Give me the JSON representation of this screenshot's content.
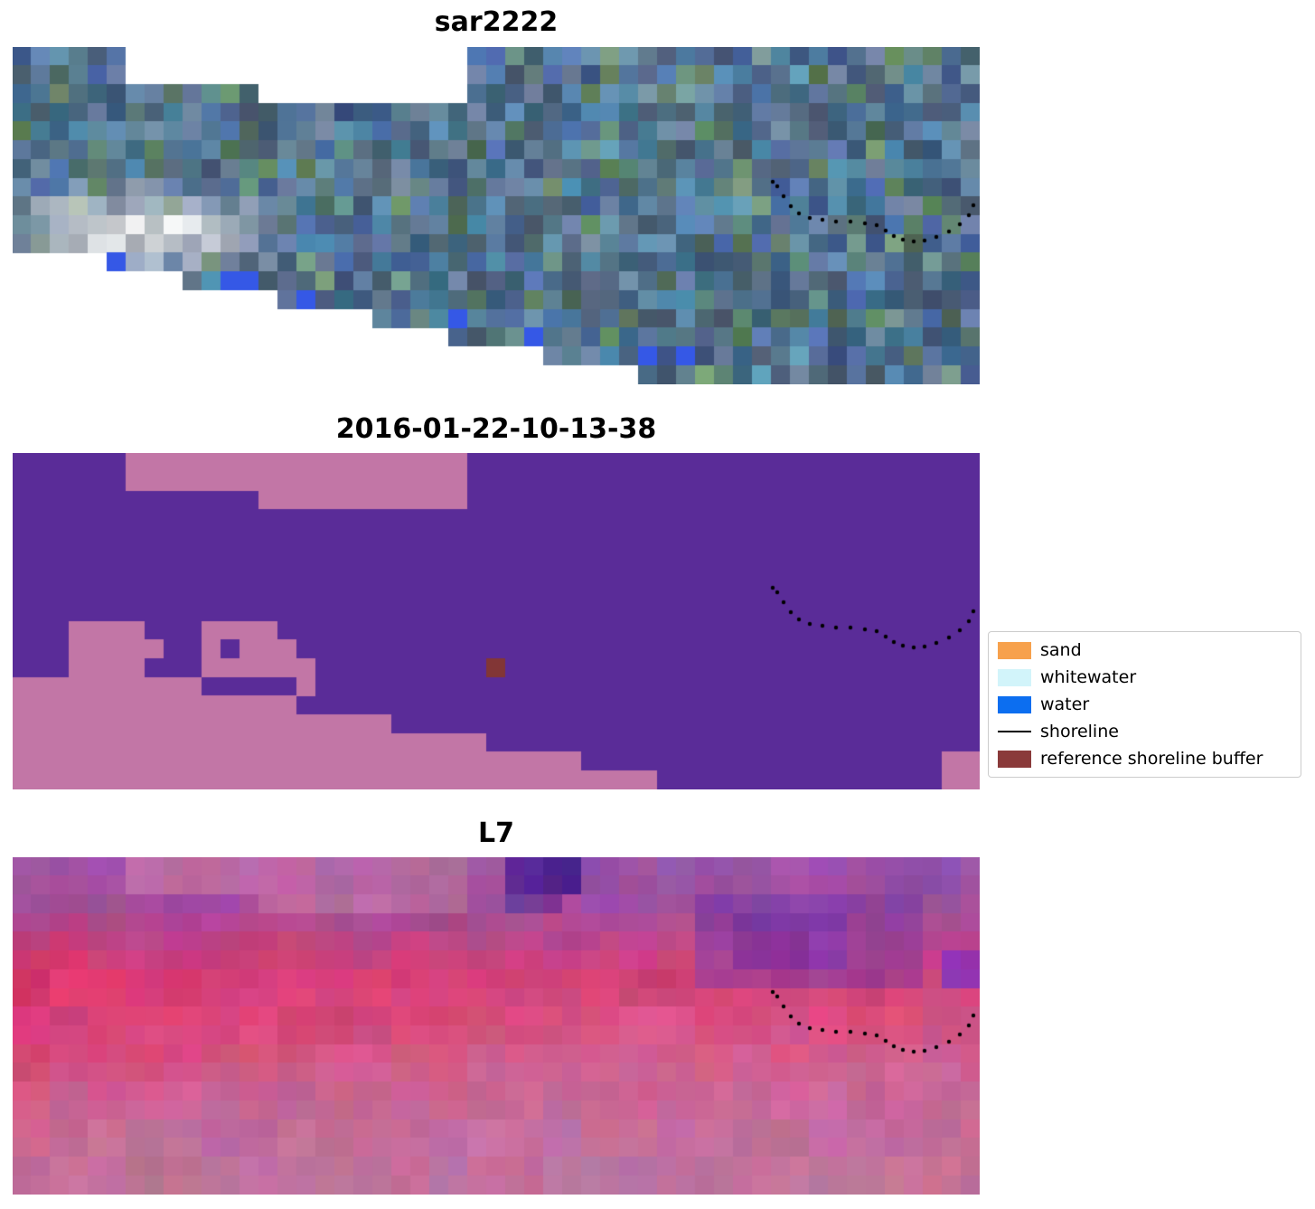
{
  "figure": {
    "background": "#ffffff"
  },
  "grid": {
    "cols": 51,
    "rows": 18
  },
  "panels": [
    {
      "title": "sar2222",
      "type": "sar_noise",
      "palette": {
        "hue_min": 196,
        "hue_span": 28,
        "green_tint_chance": 0.16,
        "accent_blue": "#3558e6",
        "nodata": "#ffffff"
      },
      "bright_spot": {
        "col": 6,
        "row": 9.3,
        "rx": 9.5,
        "ry": 2.8,
        "strength": 0.5
      },
      "top_start_rows": [
        [
          0,
          5,
          0
        ],
        [
          6,
          12,
          2
        ],
        [
          13,
          23,
          3
        ],
        [
          24,
          50,
          0
        ]
      ],
      "bottom_last_rows": [
        [
          0,
          4,
          10
        ],
        [
          5,
          8,
          11
        ],
        [
          9,
          13,
          12
        ],
        [
          14,
          18,
          13
        ],
        [
          19,
          22,
          14
        ],
        [
          23,
          27,
          15
        ],
        [
          28,
          32,
          16
        ],
        [
          33,
          50,
          17
        ]
      ],
      "accent_cells": [
        [
          5,
          11
        ],
        [
          11,
          12
        ],
        [
          12,
          12
        ],
        [
          15,
          13
        ],
        [
          23,
          14
        ],
        [
          27,
          15
        ],
        [
          33,
          16
        ],
        [
          35,
          16
        ]
      ]
    },
    {
      "title": "2016-01-22-10-13-38",
      "type": "classification",
      "colors": {
        "water_class": "#5a2c98",
        "land_class": "#c276a6",
        "buffer": "#823636"
      },
      "top_start_rows": [
        [
          0,
          5,
          0
        ],
        [
          6,
          12,
          2
        ],
        [
          13,
          23,
          3
        ],
        [
          24,
          50,
          0
        ]
      ],
      "bottom_first_pink_rows": [
        [
          0,
          4,
          12
        ],
        [
          5,
          9,
          12
        ],
        [
          10,
          14,
          13
        ],
        [
          15,
          19,
          14
        ],
        [
          20,
          24,
          15
        ],
        [
          25,
          29,
          16
        ],
        [
          30,
          33,
          17
        ],
        [
          34,
          50,
          18
        ]
      ],
      "pink_patches": [
        {
          "cols": [
            3,
            6
          ],
          "rows": [
            9,
            11
          ]
        },
        {
          "cols": [
            7,
            7
          ],
          "rows": [
            10,
            10
          ]
        },
        {
          "cols": [
            10,
            13
          ],
          "rows": [
            9,
            11
          ]
        },
        {
          "cols": [
            14,
            14
          ],
          "rows": [
            10,
            11
          ]
        },
        {
          "cols": [
            15,
            15
          ],
          "rows": [
            11,
            12
          ]
        },
        {
          "cols": [
            49,
            50
          ],
          "rows": [
            16,
            17
          ]
        }
      ],
      "purple_patches": [
        {
          "cols": [
            11,
            11
          ],
          "rows": [
            10,
            10
          ]
        }
      ],
      "buffer_cells": [
        [
          25,
          11
        ]
      ]
    },
    {
      "title": "L7",
      "type": "l7_noise",
      "gradient_stops": [
        [
          0,
          "#9a55ad"
        ],
        [
          2,
          "#a04f9f"
        ],
        [
          4,
          "#bc4689"
        ],
        [
          6,
          "#d64078"
        ],
        [
          8,
          "#d94e81"
        ],
        [
          11,
          "#cd6292"
        ],
        [
          14,
          "#c46e9b"
        ],
        [
          17,
          "#c1739e"
        ]
      ],
      "red_boost": {
        "color": "#dc2e62",
        "max_col": 26,
        "peak_row": 8,
        "row_width": 4.2,
        "strength": 0.55
      },
      "top_start_rows": [
        [
          0,
          5,
          0
        ],
        [
          6,
          12,
          2
        ],
        [
          13,
          23,
          3
        ],
        [
          24,
          50,
          0
        ]
      ],
      "top_left_overlay": {
        "color": "#bd6da2",
        "alpha": 0.85
      },
      "patches": [
        {
          "cols": [
            26,
            29
          ],
          "rows": [
            0,
            1
          ],
          "color": "#4c1d8e",
          "alpha": 0.85
        },
        {
          "cols": [
            26,
            28
          ],
          "rows": [
            2,
            2
          ],
          "color": "#4c1d8e",
          "alpha": 0.45
        },
        {
          "cols": [
            36,
            47
          ],
          "rows": [
            2,
            6
          ],
          "color": "#7c39a8",
          "alpha": 0.5
        },
        {
          "cols": [
            38,
            43
          ],
          "rows": [
            3,
            5
          ],
          "color": "#6f2da6",
          "alpha": 0.45
        },
        {
          "cols": [
            49,
            50
          ],
          "rows": [
            5,
            6
          ],
          "color": "#6b2ad0",
          "alpha": 0.6
        },
        {
          "cols": [
            44,
            48
          ],
          "rows": [
            0,
            1
          ],
          "color": "#8a3f9f",
          "alpha": 0.4
        }
      ],
      "jitter": 12
    }
  ],
  "shoreline_dots": [
    [
      841,
      149
    ],
    [
      846,
      154
    ],
    [
      853,
      165
    ],
    [
      861,
      176
    ],
    [
      870,
      184
    ],
    [
      882,
      189
    ],
    [
      896,
      191
    ],
    [
      911,
      193
    ],
    [
      927,
      193
    ],
    [
      943,
      195
    ],
    [
      956,
      197
    ],
    [
      966,
      203
    ],
    [
      975,
      209
    ],
    [
      985,
      213
    ],
    [
      997,
      215
    ],
    [
      1009,
      214
    ],
    [
      1022,
      210
    ],
    [
      1036,
      204
    ],
    [
      1048,
      196
    ],
    [
      1058,
      186
    ],
    [
      1063,
      175
    ]
  ],
  "dot_radius": 2.2,
  "legend": {
    "border_color": "#cccccc",
    "items": [
      {
        "label": "sand",
        "color": "#f7a14c",
        "swatch": "patch"
      },
      {
        "label": "whitewater",
        "color": "#d2f4fa",
        "swatch": "patch"
      },
      {
        "label": "water",
        "color": "#0c6ef0",
        "swatch": "patch"
      },
      {
        "label": "shoreline",
        "color": "#000000",
        "swatch": "line"
      },
      {
        "label": "reference shoreline buffer",
        "color": "#8a3a3a",
        "swatch": "patch"
      }
    ]
  }
}
